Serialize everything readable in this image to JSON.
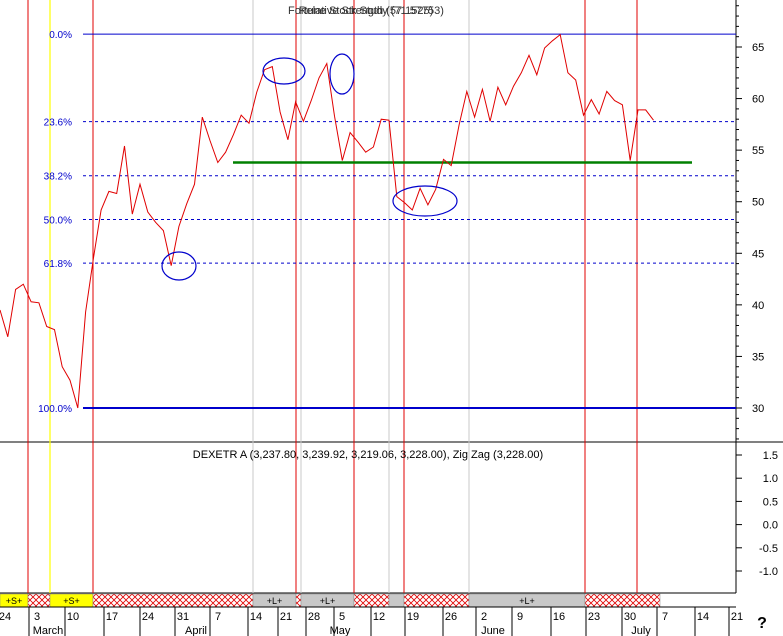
{
  "header": {
    "title_overlap": [
      "Fortune Stock Study (71.57753)",
      "Relative Strength (57.1525)"
    ]
  },
  "indicator": {
    "label": "DEXETR A (3,237.80, 3,239.92, 3,219.06, 3,228.00), Zig Zag (3,228.00)"
  },
  "help_glyph": "?",
  "colors": {
    "price": "#e00000",
    "fib": "#0000cc",
    "support": "#008000",
    "circle": "#0000cc",
    "vline": "#e00000",
    "yellow": "#ffff00"
  },
  "chart_data": {
    "type": "line",
    "y_axis": {
      "ticks": [
        "65",
        "60",
        "55",
        "50",
        "45",
        "40",
        "35",
        "30"
      ],
      "range": [
        27,
        68.5
      ]
    },
    "fib_levels": [
      {
        "label": "0.0%",
        "value": 66.25
      },
      {
        "label": "23.6%",
        "value": 57.77
      },
      {
        "label": "38.2%",
        "value": 52.52
      },
      {
        "label": "50.0%",
        "value": 48.28
      },
      {
        "label": "61.8%",
        "value": 44.04
      },
      {
        "label": "100.0%",
        "value": 30.0
      }
    ],
    "support_line": {
      "value": 53.8
    },
    "x_axis": {
      "days": [
        "24",
        "3",
        "10",
        "17",
        "24",
        "31",
        "7",
        "14",
        "21",
        "28",
        "5",
        "12",
        "19",
        "26",
        "2",
        "9",
        "16",
        "23",
        "30",
        "7",
        "14",
        "21"
      ],
      "months": [
        "March",
        "April",
        "May",
        "June",
        "July"
      ]
    },
    "price": [
      39.5,
      36.9,
      41.5,
      42.0,
      40.3,
      40.2,
      37.9,
      37.6,
      34.0,
      32.7,
      30.0,
      39.3,
      44.5,
      49.2,
      51.0,
      50.8,
      55.4,
      48.8,
      51.7,
      49.0,
      48.0,
      47.2,
      43.8,
      47.6,
      49.8,
      51.7,
      58.2,
      55.9,
      53.8,
      54.8,
      56.5,
      58.4,
      57.6,
      60.6,
      62.8,
      63.1,
      58.7,
      56.0,
      59.7,
      57.8,
      59.8,
      62.0,
      63.4,
      58.3,
      54.0,
      56.7,
      55.8,
      54.8,
      55.3,
      58.0,
      57.9,
      50.5,
      49.9,
      49.2,
      51.3,
      49.7,
      51.2,
      54.1,
      53.5,
      57.4,
      60.7,
      58.2,
      60.9,
      57.8,
      61.1,
      59.4,
      61.2,
      62.5,
      64.2,
      62.3,
      64.9,
      65.6,
      66.2,
      62.5,
      61.8,
      58.4,
      59.9,
      58.5,
      60.7,
      59.8,
      59.4,
      54.0,
      58.9,
      58.9,
      57.9
    ],
    "selection_circles": 6,
    "vertical_markers": 7
  },
  "timeline_bar": {
    "segments": [
      {
        "label": "+S+",
        "style": "yellow"
      },
      {
        "label": "",
        "style": "hatch"
      },
      {
        "label": "+S+",
        "style": "yellow"
      },
      {
        "label": "",
        "style": "hatch"
      },
      {
        "label": "+L+",
        "style": "gray"
      },
      {
        "label": "",
        "style": "hatch"
      },
      {
        "label": "+L+",
        "style": "gray"
      },
      {
        "label": "",
        "style": "hatch"
      },
      {
        "label": "",
        "style": "gray"
      },
      {
        "label": "",
        "style": "hatch"
      },
      {
        "label": "+L+",
        "style": "gray"
      },
      {
        "label": "",
        "style": "hatch"
      }
    ]
  },
  "lower_panel": {
    "ticks": [
      "1.5",
      "1.0",
      "0.5",
      "0.0",
      "-0.5",
      "-1.0"
    ]
  }
}
